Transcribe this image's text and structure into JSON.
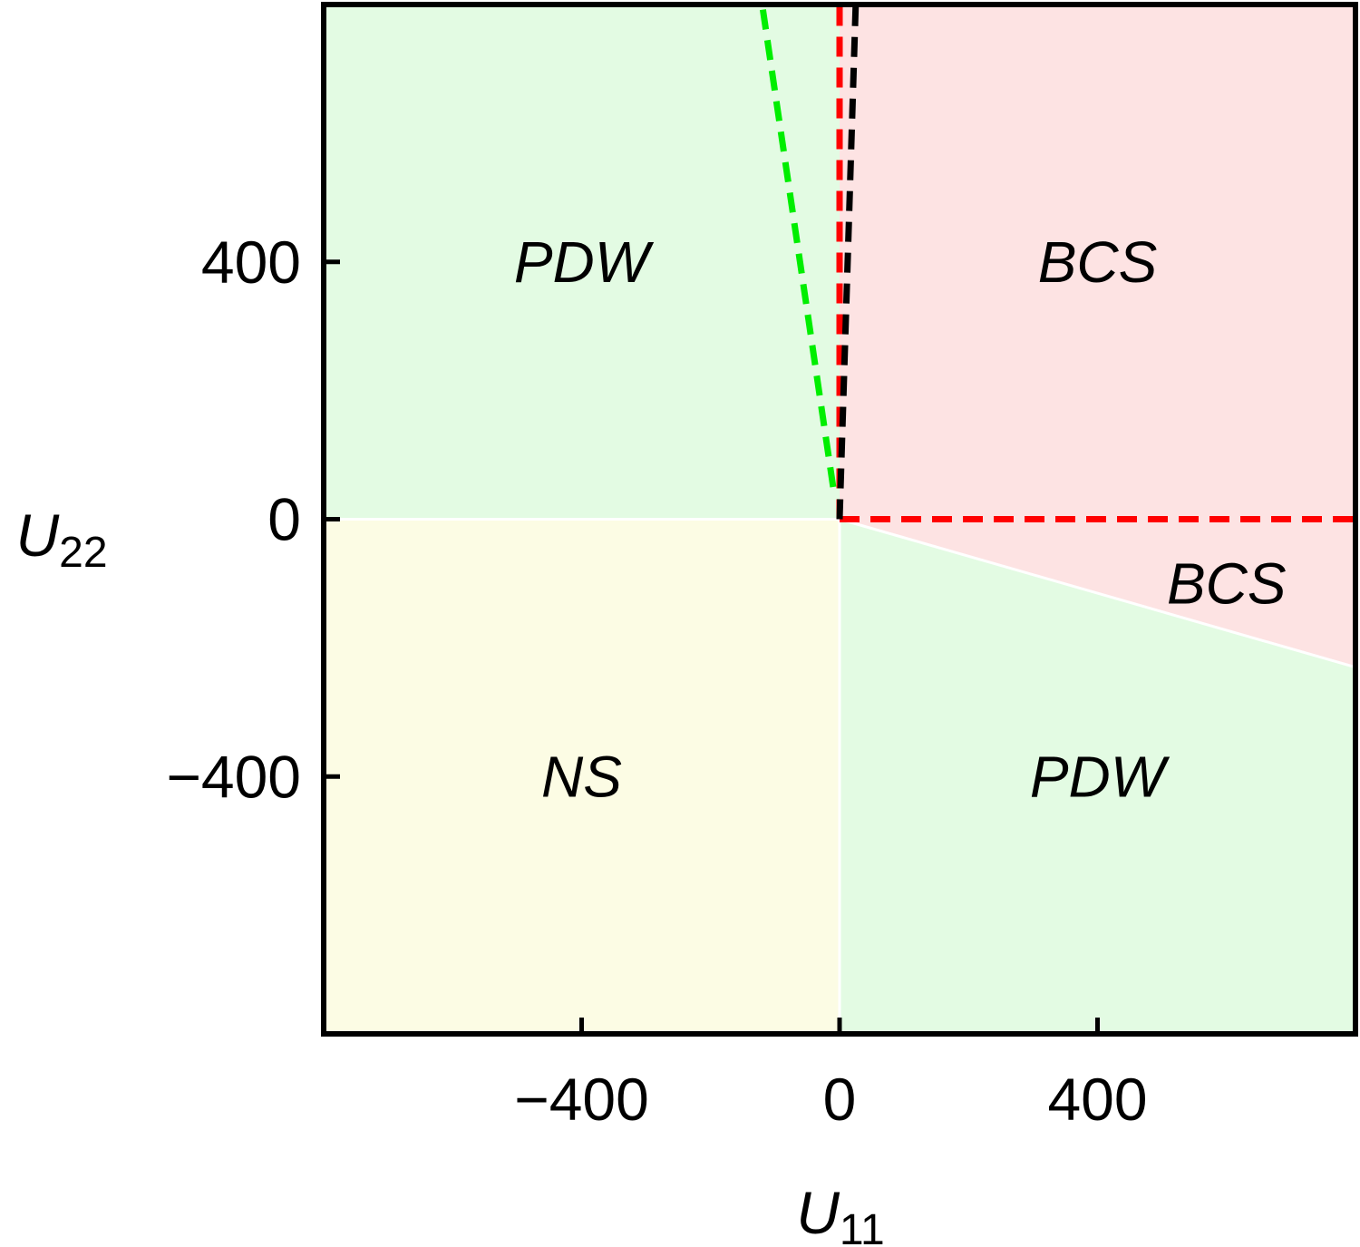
{
  "chart_data": {
    "type": "area",
    "title": "",
    "xlabel": {
      "main": "U",
      "sub": "11"
    },
    "ylabel": {
      "main": "U",
      "sub": "22"
    },
    "xlim": [
      -800,
      800
    ],
    "ylim": [
      -800,
      800
    ],
    "xticks": [
      {
        "value": -400,
        "label": "−400"
      },
      {
        "value": 0,
        "label": "0"
      },
      {
        "value": 400,
        "label": "400"
      }
    ],
    "yticks": [
      {
        "value": 400,
        "label": "400"
      },
      {
        "value": 0,
        "label": "0"
      },
      {
        "value": -400,
        "label": "−400"
      }
    ],
    "grid": false,
    "colors": {
      "pdw": "#e3fbe3",
      "bcs": "#fde3e3",
      "ns": "#fcfce4",
      "green_line": "#00ee00",
      "red_line": "#ff0000",
      "black_line": "#000000",
      "region_boundary": "#ffffff"
    },
    "regions": [
      {
        "name": "PDW",
        "label": "PDW",
        "color": "pdw",
        "polygon": [
          [
            -800,
            0
          ],
          [
            0,
            0
          ],
          [
            0,
            800
          ],
          [
            -800,
            800
          ]
        ],
        "label_at": [
          -400,
          400
        ]
      },
      {
        "name": "BCS",
        "label": "BCS",
        "color": "bcs",
        "polygon": [
          [
            0,
            0
          ],
          [
            800,
            0
          ],
          [
            800,
            800
          ],
          [
            0,
            800
          ]
        ],
        "label_at": [
          400,
          400
        ]
      },
      {
        "name": "BCS",
        "label": "BCS",
        "color": "bcs",
        "polygon": [
          [
            0,
            0
          ],
          [
            800,
            0
          ],
          [
            800,
            -230
          ]
        ],
        "label_at": [
          600,
          -100
        ]
      },
      {
        "name": "NS",
        "label": "NS",
        "color": "ns",
        "polygon": [
          [
            -800,
            -800
          ],
          [
            0,
            -800
          ],
          [
            0,
            0
          ],
          [
            -800,
            0
          ]
        ],
        "label_at": [
          -400,
          -400
        ]
      },
      {
        "name": "PDW",
        "label": "PDW",
        "color": "pdw",
        "polygon": [
          [
            0,
            -800
          ],
          [
            800,
            -800
          ],
          [
            800,
            -230
          ],
          [
            0,
            0
          ]
        ],
        "label_at": [
          400,
          -400
        ]
      }
    ],
    "boundaries": [
      {
        "color": "region_boundary",
        "dashed": false,
        "points": [
          [
            -800,
            0
          ],
          [
            0,
            0
          ]
        ]
      },
      {
        "color": "region_boundary",
        "dashed": false,
        "points": [
          [
            0,
            0
          ],
          [
            800,
            -230
          ]
        ]
      },
      {
        "color": "region_boundary",
        "dashed": false,
        "points": [
          [
            0,
            0
          ],
          [
            0,
            -800
          ]
        ]
      }
    ],
    "series": [
      {
        "color": "green_line",
        "dashed": true,
        "points": [
          [
            -10,
            50
          ],
          [
            -120,
            800
          ]
        ]
      },
      {
        "color": "red_line",
        "dashed": true,
        "points": [
          [
            0,
            0
          ],
          [
            0,
            800
          ]
        ]
      },
      {
        "color": "red_line",
        "dashed": true,
        "points": [
          [
            0,
            0
          ],
          [
            800,
            0
          ]
        ]
      },
      {
        "color": "black_line",
        "dashed": true,
        "points": [
          [
            0,
            0
          ],
          [
            25,
            800
          ]
        ]
      }
    ]
  }
}
